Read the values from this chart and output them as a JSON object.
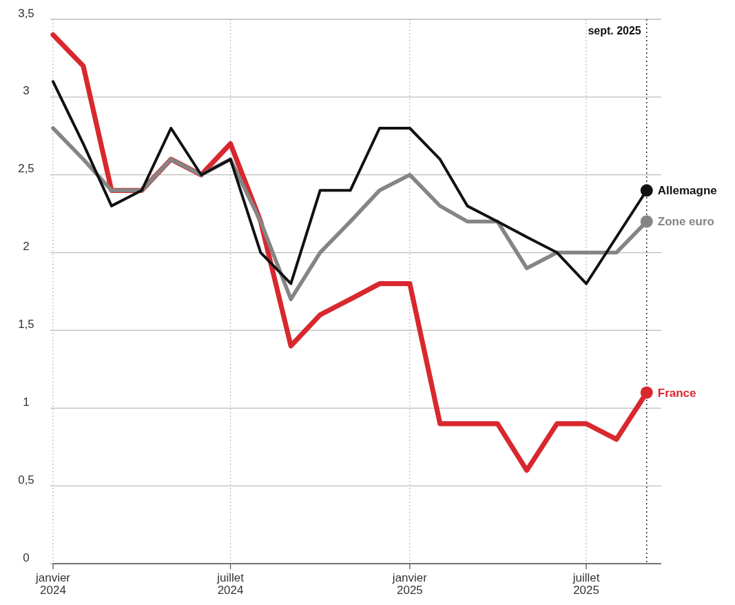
{
  "chart_data": {
    "type": "line",
    "x": [
      "2024-01",
      "2024-02",
      "2024-03",
      "2024-04",
      "2024-05",
      "2024-06",
      "2024-07",
      "2024-08",
      "2024-09",
      "2024-10",
      "2024-11",
      "2024-12",
      "2025-01",
      "2025-02",
      "2025-03",
      "2025-04",
      "2025-05",
      "2025-06",
      "2025-07",
      "2025-08",
      "2025-09"
    ],
    "series": [
      {
        "name": "France",
        "color": "#d8282e",
        "values": [
          3.4,
          3.2,
          2.4,
          2.4,
          2.6,
          2.5,
          2.7,
          2.2,
          1.4,
          1.6,
          1.7,
          1.8,
          1.8,
          0.9,
          0.9,
          0.9,
          0.6,
          0.9,
          0.9,
          0.8,
          1.1
        ]
      },
      {
        "name": "Zone euro",
        "color": "#858585",
        "values": [
          2.8,
          2.6,
          2.4,
          2.4,
          2.6,
          2.5,
          2.6,
          2.2,
          1.7,
          2.0,
          2.2,
          2.4,
          2.5,
          2.3,
          2.2,
          2.2,
          1.9,
          2.0,
          2.0,
          2.0,
          2.2
        ]
      },
      {
        "name": "Allemagne",
        "color": "#111111",
        "values": [
          3.1,
          2.7,
          2.3,
          2.4,
          2.8,
          2.5,
          2.6,
          2.0,
          1.8,
          2.4,
          2.4,
          2.8,
          2.8,
          2.6,
          2.3,
          2.2,
          2.1,
          2.0,
          1.8,
          2.1,
          2.4
        ]
      }
    ],
    "xlim": [
      "2024-01-01",
      "2025-09-16"
    ],
    "xticks": [
      {
        "value": "2024-01",
        "label": "janvier\n2024"
      },
      {
        "value": "2024-07",
        "label": "juillet\n2024"
      },
      {
        "value": "2025-01",
        "label": "janvier\n2025"
      },
      {
        "value": "2025-07",
        "label": "juillet\n2025"
      }
    ],
    "ylim": [
      0,
      3.5
    ],
    "yticks": [
      0,
      {
        "value": 0.5,
        "label": "0,5"
      },
      1,
      {
        "value": 1.5,
        "label": "1,5"
      },
      2,
      {
        "value": 2.5,
        "label": "2,5"
      },
      3,
      {
        "value": 3.5,
        "label": "3,5"
      }
    ],
    "ref_lines": [
      {
        "axis": "x",
        "value": "2025-09",
        "label": "sept. 2025",
        "color": "#333333",
        "line_style": "dotted"
      }
    ],
    "grid": true,
    "legend": false,
    "marker": "none",
    "line_style": "solid"
  }
}
